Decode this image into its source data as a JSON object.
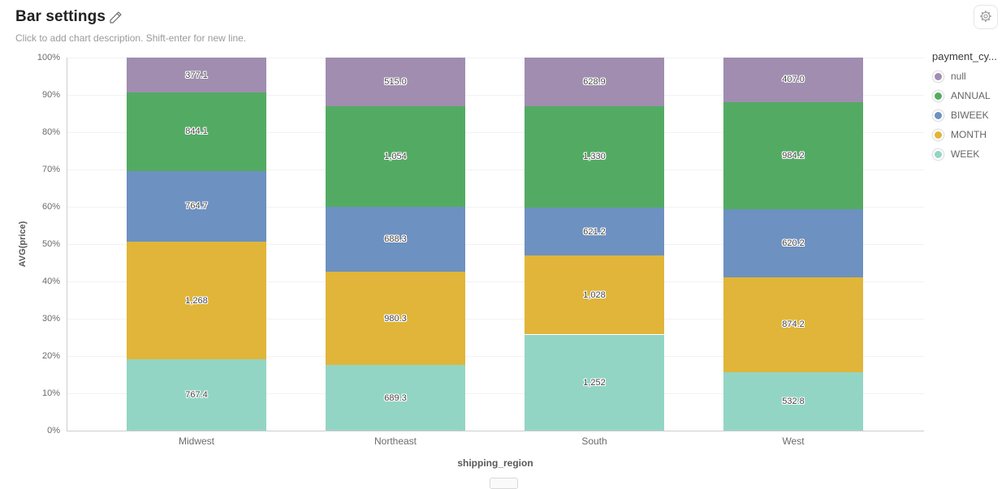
{
  "header": {
    "title": "Bar settings",
    "description_placeholder": "Click to add chart description. Shift-enter for new line."
  },
  "toolbar": {
    "settings_icon": "gear-icon",
    "edit_icon": "pencil-icon"
  },
  "chart_data": {
    "type": "bar",
    "subtype": "stacked-100-percent",
    "xlabel": "shipping_region",
    "ylabel": "AVG(price)",
    "categories": [
      "Midwest",
      "Northeast",
      "South",
      "West"
    ],
    "series": [
      {
        "name": "WEEK",
        "color": "#93d5c4",
        "values": [
          767.4,
          689.3,
          1252,
          532.8
        ],
        "labels": [
          "767.4",
          "689.3",
          "1,252",
          "532.8"
        ]
      },
      {
        "name": "MONTH",
        "color": "#e0b539",
        "values": [
          1268,
          980.3,
          1028,
          874.2
        ],
        "labels": [
          "1,268",
          "980.3",
          "1,028",
          "874.2"
        ]
      },
      {
        "name": "BIWEEK",
        "color": "#6d91c0",
        "values": [
          764.7,
          688.3,
          621.2,
          620.2
        ],
        "labels": [
          "764.7",
          "688.3",
          "621.2",
          "620.2"
        ]
      },
      {
        "name": "ANNUAL",
        "color": "#53ab63",
        "values": [
          844.1,
          1054,
          1330,
          984.2
        ],
        "labels": [
          "844.1",
          "1,054",
          "1,330",
          "984.2"
        ]
      },
      {
        "name": "null",
        "color": "#a08db0",
        "values": [
          377.1,
          515.0,
          628.9,
          407.0
        ],
        "labels": [
          "377.1",
          "515.0",
          "628.9",
          "407.0"
        ]
      }
    ],
    "y_axis": {
      "ticks": [
        "100%",
        "90%",
        "80%",
        "70%",
        "60%",
        "50%",
        "40%",
        "30%",
        "20%",
        "10%",
        "0%"
      ],
      "range": [
        0,
        100
      ],
      "grid": true
    },
    "legend": {
      "title": "payment_cy...",
      "position": "top-right",
      "items": [
        {
          "label": "null",
          "color": "#a08db0"
        },
        {
          "label": "ANNUAL",
          "color": "#53ab63"
        },
        {
          "label": "BIWEEK",
          "color": "#6d91c0"
        },
        {
          "label": "MONTH",
          "color": "#e0b539"
        },
        {
          "label": "WEEK",
          "color": "#93d5c4"
        }
      ]
    }
  }
}
